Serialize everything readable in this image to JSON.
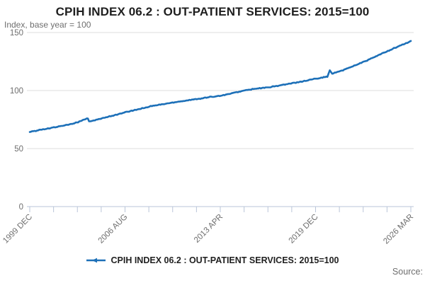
{
  "header": {
    "title": "CPIH INDEX 06.2 : OUT-PATIENT SERVICES: 2015=100",
    "subtitle": "Index, base year = 100"
  },
  "legend": {
    "label": "CPIH INDEX 06.2 : OUT-PATIENT SERVICES: 2015=100"
  },
  "source": {
    "label": "Source:"
  },
  "colors": {
    "line": "#1d70b8",
    "grid": "#dcdcdc",
    "axis": "#bac5d8",
    "text_gray": "#6e6e6e",
    "title_dark": "#1f1f1f"
  },
  "chart_data": {
    "type": "line",
    "title": "CPIH INDEX 06.2 : OUT-PATIENT SERVICES: 2015=100",
    "ylabel": "Index, base year = 100",
    "ylim": [
      0,
      150
    ],
    "y_ticks": [
      0,
      50,
      100,
      150
    ],
    "x_tick_labels": [
      "1999 DEC",
      "2006 AUG",
      "2013 APR",
      "2019 DEC",
      "2026 MAR"
    ],
    "minor_ticks_between_labels": 3,
    "total_ticks": 17,
    "grid": "horizontal-only",
    "legend_position": "bottom-center",
    "x_range_months": 315,
    "series": [
      {
        "name": "CPIH INDEX 06.2 : OUT-PATIENT SERVICES: 2015=100",
        "points": [
          {
            "m": 0,
            "date": "1999 DEC",
            "v": 64.6
          },
          {
            "m": 5,
            "date": "2000 MAY",
            "v": 65.0
          },
          {
            "m": 8,
            "date": "2000 AUG",
            "v": 66.3
          },
          {
            "m": 14,
            "date": "2001 FEB",
            "v": 66.9
          },
          {
            "m": 20,
            "date": "2001 AUG",
            "v": 68.3
          },
          {
            "m": 32,
            "date": "2002 AUG",
            "v": 70.7
          },
          {
            "m": 40,
            "date": "2003 APR",
            "v": 72.8
          },
          {
            "m": 48,
            "date": "2003 DEC",
            "v": 76.2
          },
          {
            "m": 49,
            "date": "2004 JAN",
            "v": 73.4
          },
          {
            "m": 60,
            "date": "2004 DEC",
            "v": 76.0
          },
          {
            "m": 80,
            "date": "2006 AUG",
            "v": 81.5
          },
          {
            "m": 100,
            "date": "2008 APR",
            "v": 86.5
          },
          {
            "m": 120,
            "date": "2009 DEC",
            "v": 90.0
          },
          {
            "m": 140,
            "date": "2011 AUG",
            "v": 93.0
          },
          {
            "m": 160,
            "date": "2013 APR",
            "v": 96.0
          },
          {
            "m": 180,
            "date": "2014 DEC",
            "v": 100.6
          },
          {
            "m": 200,
            "date": "2016 AUG",
            "v": 103.2
          },
          {
            "m": 220,
            "date": "2018 APR",
            "v": 106.8
          },
          {
            "m": 240,
            "date": "2019 DEC",
            "v": 111.0
          },
          {
            "m": 246,
            "date": "2020 JUN",
            "v": 112.0
          },
          {
            "m": 248,
            "date": "2020 AUG",
            "v": 117.5
          },
          {
            "m": 250,
            "date": "2020 OCT",
            "v": 114.5
          },
          {
            "m": 260,
            "date": "2021 AUG",
            "v": 118.0
          },
          {
            "m": 280,
            "date": "2023 APR",
            "v": 126.5
          },
          {
            "m": 300,
            "date": "2024 DEC",
            "v": 136.0
          },
          {
            "m": 315,
            "date": "2026 MAR",
            "v": 142.5
          }
        ]
      }
    ]
  }
}
